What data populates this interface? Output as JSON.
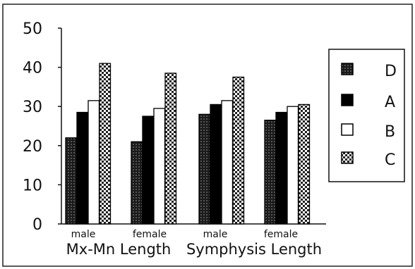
{
  "chart_data": {
    "type": "bar",
    "groups": [
      {
        "sub": "male",
        "category": "Mx-Mn Length"
      },
      {
        "sub": "female",
        "category": "Mx-Mn Length"
      },
      {
        "sub": "male",
        "category": "Symphysis Length"
      },
      {
        "sub": "female",
        "category": "Symphysis Length"
      }
    ],
    "group_labels": [
      "Mx-Mn Length",
      "Symphysis Length"
    ],
    "series": [
      {
        "name": "D",
        "values": [
          22,
          21,
          28,
          26.5
        ],
        "color": "#2a2a2a",
        "pattern": "dark-hatch"
      },
      {
        "name": "A",
        "values": [
          28.5,
          27.5,
          30.5,
          28.5
        ],
        "color": "#000000",
        "pattern": "solid"
      },
      {
        "name": "B",
        "values": [
          31.5,
          29.5,
          31.5,
          30
        ],
        "color": "#ffffff",
        "pattern": "hollow"
      },
      {
        "name": "C",
        "values": [
          41,
          38.5,
          37.5,
          30.5
        ],
        "color": "#ffffff",
        "pattern": "checker"
      }
    ],
    "y_ticks": [
      "0",
      "10",
      "20",
      "30",
      "40",
      "50"
    ],
    "ylim": [
      0,
      50
    ],
    "grid": false,
    "legend_position": "right"
  }
}
